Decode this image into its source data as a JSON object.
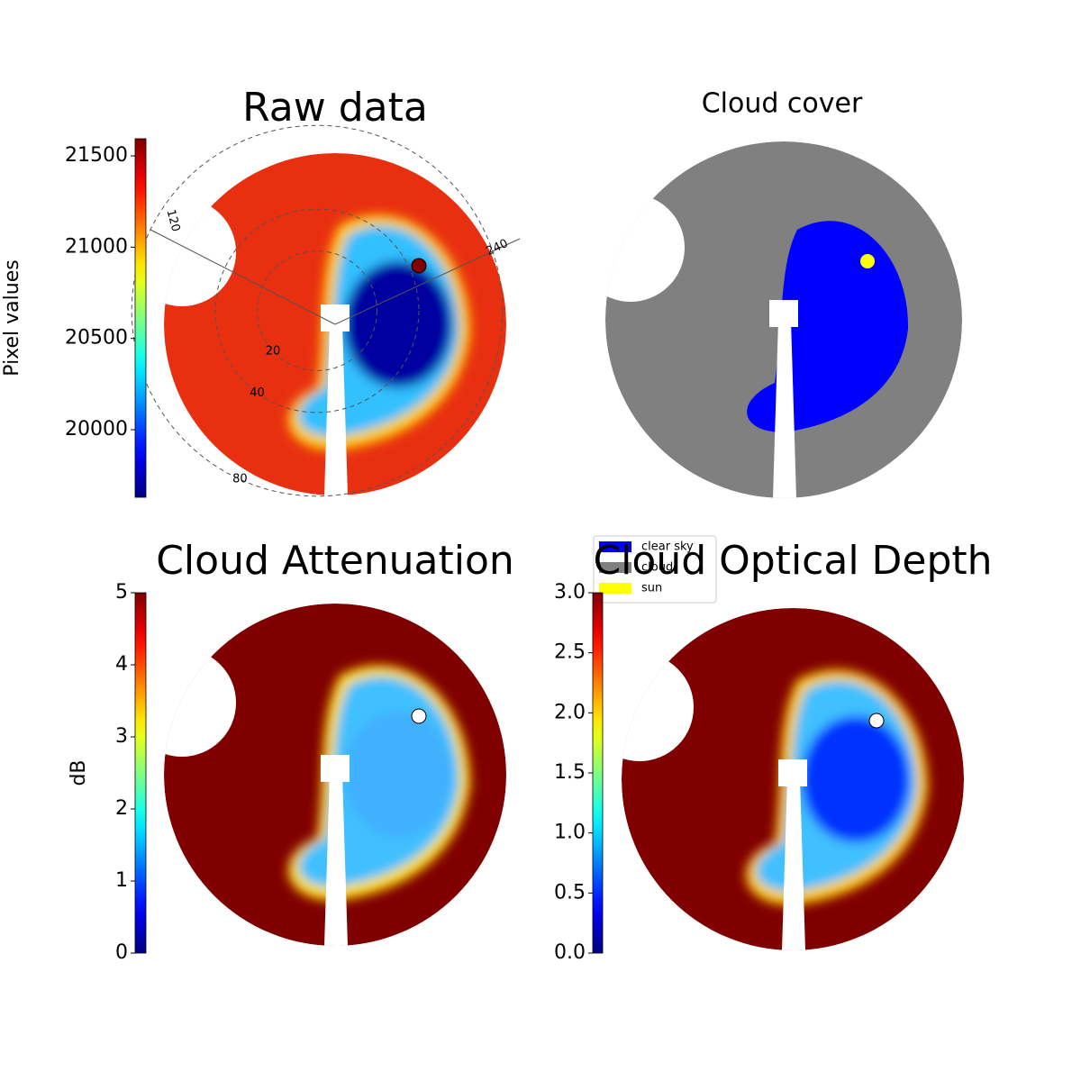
{
  "chart_data": [
    {
      "type": "heatmap",
      "title": "Raw data",
      "colorbar_label": "Pixel values",
      "colormap": "jet",
      "clim": [
        19630,
        21594
      ],
      "cticks": [
        20000,
        20500,
        21000,
        21500
      ],
      "azimuth_ticks": [
        120,
        240
      ],
      "zenith_ticks": [
        20,
        40,
        80
      ]
    },
    {
      "type": "categorical",
      "title": "Cloud cover",
      "legend": [
        {
          "name": "clear sky",
          "color": "#0000ff"
        },
        {
          "name": "cloud",
          "color": "#808080"
        },
        {
          "name": "sun",
          "color": "#ffff00"
        }
      ]
    },
    {
      "type": "heatmap",
      "title": "Cloud Attenuation",
      "colorbar_label": "dB",
      "colormap": "jet",
      "clim": [
        0,
        5
      ],
      "cticks": [
        0,
        1,
        2,
        3,
        4,
        5
      ]
    },
    {
      "type": "heatmap",
      "title": "Cloud Optical Depth",
      "colormap": "jet",
      "clim": [
        0,
        3
      ],
      "cticks": [
        {
          "value": 0,
          "label": "0.0"
        },
        0.5,
        {
          "value": 1,
          "label": "1.0"
        },
        1.5,
        {
          "value": 2,
          "label": "2.0"
        },
        2.5,
        {
          "value": 3,
          "label": "3.0"
        }
      ]
    }
  ]
}
